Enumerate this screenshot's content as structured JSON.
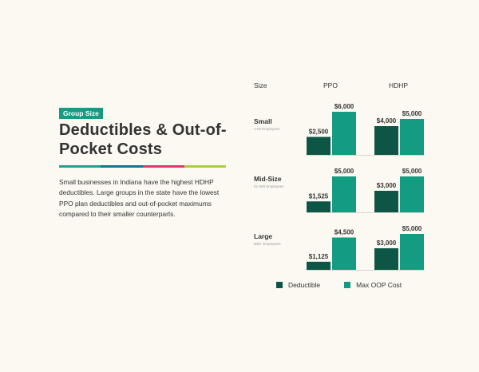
{
  "left": {
    "badge": "Group Size",
    "title": "Deductibles & Out-of-Pocket Costs",
    "description": "Small businesses in Indiana have the highest HDHP deductibles. Large groups in the state have the lowest PPO plan deductibles and out-of-pocket maximums compared to their smaller counterparts."
  },
  "colors": {
    "deductible": "#0d5645",
    "max_oop": "#149c82",
    "badge": "#1a9a82",
    "rule": [
      "#1ba48f",
      "#0f7590",
      "#e2356e",
      "#a8cf3c"
    ]
  },
  "legend": {
    "deductible": "Deductible",
    "max_oop": "Max OOP Cost"
  },
  "chart_data": {
    "type": "bar",
    "column_headers": [
      "Size",
      "PPO",
      "HDHP"
    ],
    "plans": [
      "PPO",
      "HDHP"
    ],
    "series_names": [
      "Deductible",
      "Max OOP Cost"
    ],
    "groups": [
      {
        "label": "Small",
        "sublabel": "1-50 Employees",
        "PPO": {
          "deductible": 2500,
          "max_oop": 6000,
          "labels": [
            "$2,500",
            "$6,000"
          ]
        },
        "HDHP": {
          "deductible": 4000,
          "max_oop": 5000,
          "labels": [
            "$4,000",
            "$5,000"
          ]
        }
      },
      {
        "label": "Mid-Size",
        "sublabel": "51-500 Employees",
        "PPO": {
          "deductible": 1525,
          "max_oop": 5000,
          "labels": [
            "$1,525",
            "$5,000"
          ]
        },
        "HDHP": {
          "deductible": 3000,
          "max_oop": 5000,
          "labels": [
            "$3,000",
            "$5,000"
          ]
        }
      },
      {
        "label": "Large",
        "sublabel": "500+ Employees",
        "PPO": {
          "deductible": 1125,
          "max_oop": 4500,
          "labels": [
            "$1,125",
            "$4,500"
          ]
        },
        "HDHP": {
          "deductible": 3000,
          "max_oop": 5000,
          "labels": [
            "$3,000",
            "$5,000"
          ]
        }
      }
    ],
    "ylim": [
      0,
      6000
    ]
  }
}
